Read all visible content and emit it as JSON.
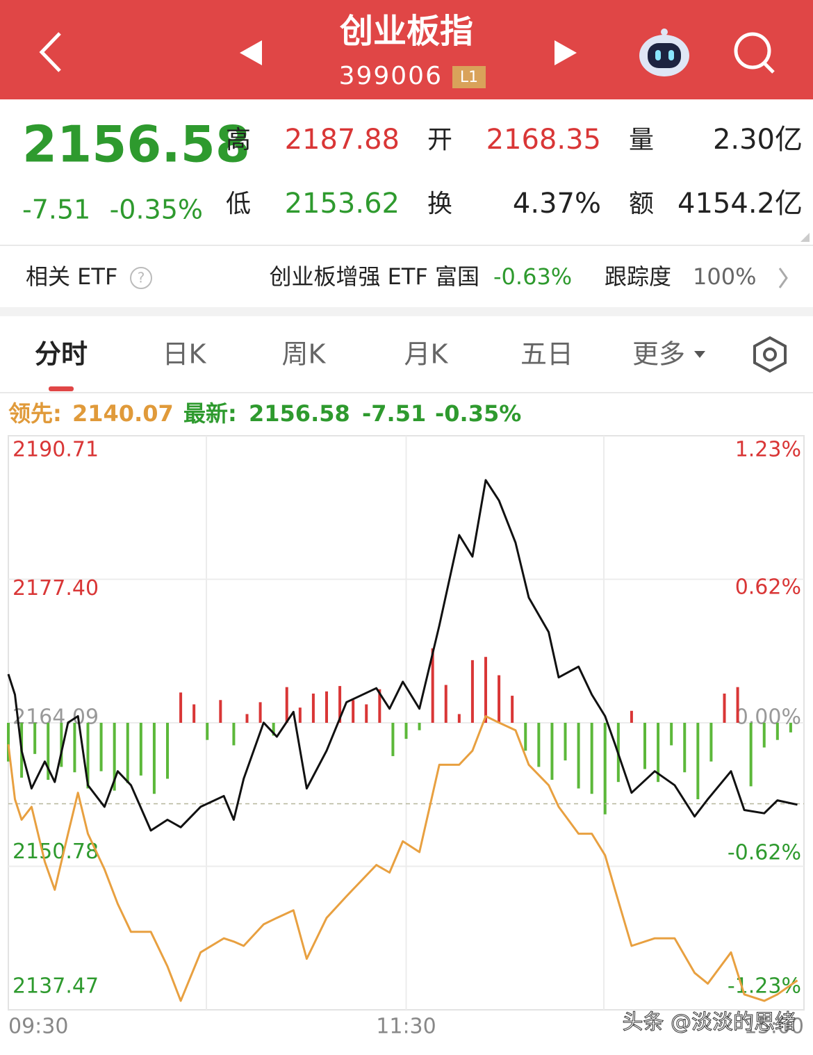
{
  "header": {
    "title": "创业板指",
    "code": "399006",
    "badge": "L1"
  },
  "quote": {
    "price": "2156.58",
    "change": "-7.51",
    "change_pct": "-0.35%",
    "fields": [
      {
        "label": "高",
        "value": "2187.88"
      },
      {
        "label": "开",
        "value": "2168.35"
      },
      {
        "label": "量",
        "value": "2.30亿"
      },
      {
        "label": "低",
        "value": "2153.62"
      },
      {
        "label": "换",
        "value": "4.37%"
      },
      {
        "label": "额",
        "value": "4154.2亿"
      }
    ]
  },
  "etf": {
    "label": "相关 ETF",
    "name": "创业板增强 ETF 富国",
    "change": "-0.63%",
    "tracking_label": "跟踪度",
    "tracking": "100%"
  },
  "tabs": [
    "分时",
    "日K",
    "周K",
    "月K",
    "五日",
    "更多"
  ],
  "legend": {
    "lead_label": "领先:",
    "lead": "2140.07",
    "latest_label": "最新:",
    "latest": "2156.58",
    "change": "-7.51",
    "change_pct": "-0.35%"
  },
  "chart_data": {
    "type": "line",
    "x": [
      0,
      2,
      4,
      7,
      11,
      14,
      18,
      21,
      24,
      29,
      33,
      37,
      43,
      48,
      52,
      58,
      65,
      68,
      71,
      77,
      81,
      86,
      90,
      96,
      102,
      111,
      115,
      119,
      124,
      130,
      136,
      140,
      144,
      148,
      153,
      157,
      163,
      166,
      172,
      176,
      180,
      183,
      188,
      195,
      201,
      207,
      211,
      218,
      222,
      228,
      232,
      238
    ],
    "series": [
      {
        "name": "最新",
        "color": "#111111",
        "values": [
          2168.6,
          2166.7,
          2161.5,
          2158.0,
          2160.5,
          2158.6,
          2164.1,
          2164.7,
          2158.3,
          2156.3,
          2159.6,
          2158.3,
          2154.1,
          2155.1,
          2154.4,
          2156.3,
          2157.3,
          2155.1,
          2158.9,
          2164.1,
          2162.8,
          2165.1,
          2158.0,
          2161.5,
          2166.0,
          2167.3,
          2165.4,
          2167.9,
          2165.4,
          2173.1,
          2181.5,
          2179.5,
          2186.6,
          2184.7,
          2180.8,
          2175.7,
          2172.5,
          2168.3,
          2169.3,
          2166.7,
          2164.7,
          2162.1,
          2157.6,
          2159.6,
          2158.3,
          2155.4,
          2157.0,
          2159.6,
          2156.0,
          2155.7,
          2156.9,
          2156.5
        ]
      },
      {
        "name": "领先",
        "color": "#e8a040",
        "values": [
          2162.1,
          2157.0,
          2155.1,
          2156.3,
          2151.2,
          2148.6,
          2153.8,
          2157.6,
          2153.8,
          2150.5,
          2147.3,
          2144.7,
          2144.7,
          2141.5,
          2138.3,
          2142.8,
          2144.1,
          2143.8,
          2143.4,
          2145.4,
          2146.0,
          2146.7,
          2142.2,
          2146.0,
          2148.0,
          2150.9,
          2150.2,
          2153.1,
          2152.1,
          2160.2,
          2160.2,
          2161.5,
          2164.7,
          2164.1,
          2163.4,
          2160.2,
          2158.3,
          2156.3,
          2153.8,
          2153.8,
          2151.8,
          2148.6,
          2143.4,
          2144.1,
          2144.1,
          2140.9,
          2139.9,
          2142.8,
          2138.9,
          2138.3,
          2138.9,
          2140.2
        ]
      }
    ],
    "bars": {
      "up_color": "#d93636",
      "down_color": "#5cb83a",
      "x": [
        0,
        4,
        8,
        12,
        16,
        20,
        24,
        28,
        32,
        36,
        40,
        44,
        48,
        52,
        56,
        60,
        64,
        68,
        72,
        76,
        80,
        84,
        88,
        92,
        96,
        100,
        104,
        108,
        112,
        116,
        120,
        124,
        128,
        132,
        136,
        140,
        144,
        148,
        152,
        156,
        160,
        164,
        168,
        172,
        176,
        180,
        184,
        188,
        192,
        196,
        200,
        204,
        208,
        212,
        216,
        220,
        224,
        228,
        232,
        236
      ],
      "values": [
        2160.5,
        2159.0,
        2161.2,
        2158.8,
        2160.0,
        2159.5,
        2158.0,
        2159.6,
        2157.8,
        2158.5,
        2159.2,
        2157.5,
        2158.9,
        2166.9,
        2165.8,
        2162.5,
        2166.2,
        2162.0,
        2164.9,
        2166.0,
        2162.9,
        2167.4,
        2165.5,
        2166.8,
        2167.0,
        2167.5,
        2166.2,
        2165.8,
        2167.2,
        2161.0,
        2162.6,
        2163.4,
        2171.0,
        2167.6,
        2164.9,
        2169.9,
        2170.2,
        2168.5,
        2166.6,
        2161.5,
        2160.0,
        2158.8,
        2160.6,
        2158.0,
        2157.5,
        2155.6,
        2158.6,
        2165.2,
        2159.8,
        2158.6,
        2162.0,
        2159.5,
        2157.0,
        2160.5,
        2166.8,
        2167.4,
        2158.2,
        2161.8,
        2162.5,
        2163.2
      ]
    },
    "xlim": [
      0,
      240
    ],
    "xticks": [
      {
        "value": 0,
        "label": "09:30"
      },
      {
        "value": 120,
        "label": "11:30"
      },
      {
        "value": 240,
        "label": "15:00"
      }
    ],
    "ylim": [
      2137.47,
      2190.71
    ],
    "yticks": [
      2137.47,
      2150.78,
      2164.09,
      {
        "value": 2177.4,
        "label": "2177.40"
      },
      2190.71
    ],
    "y2lim": [
      -1.23,
      1.23
    ],
    "y2ticks": [
      {
        "value": -1.23,
        "label": "-1.23%"
      },
      {
        "value": -0.62,
        "label": "-0.62%"
      },
      {
        "value": 0,
        "label": "0.00%"
      },
      {
        "value": 0.62,
        "label": "0.62%"
      },
      {
        "value": 1.23,
        "label": "1.23%"
      }
    ],
    "grid": true
  },
  "watermark": "头条 @淡淡的思绪"
}
